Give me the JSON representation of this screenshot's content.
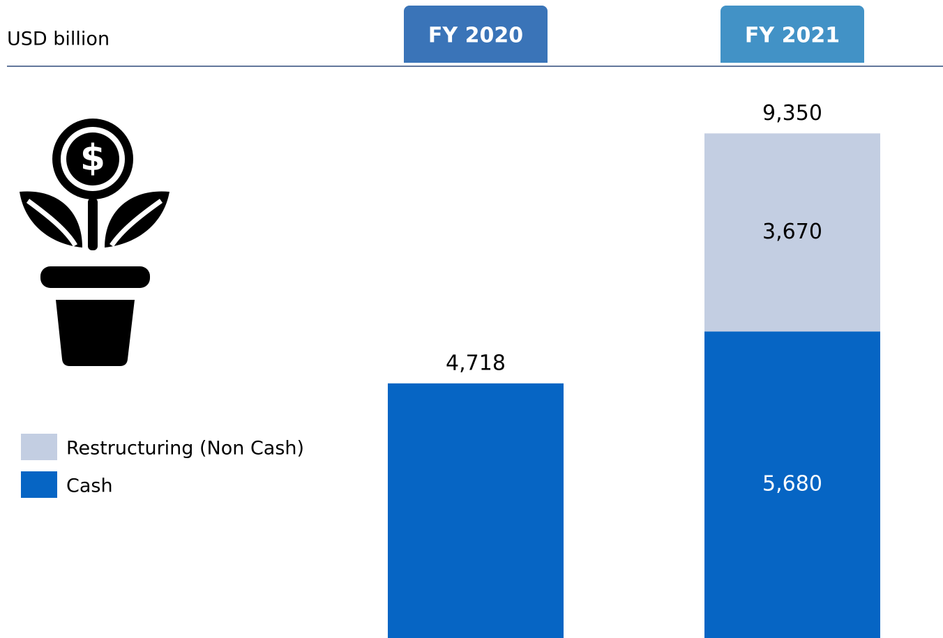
{
  "chart_data": {
    "type": "stacked_bar",
    "unit_label": "USD billion",
    "categories": [
      "FY 2020",
      "FY 2021"
    ],
    "series": [
      {
        "name": "Cash",
        "color": "#0665c4",
        "values": [
          4718,
          5680
        ],
        "value_labels": [
          null,
          "5,680"
        ]
      },
      {
        "name": "Restructuring (Non Cash)",
        "color": "#c3cee2",
        "values": [
          null,
          3670
        ],
        "value_labels": [
          null,
          "3,670"
        ]
      }
    ],
    "totals": [
      4718,
      9350
    ],
    "total_labels": [
      "4,718",
      "9,350"
    ],
    "ylim": [
      0,
      10000
    ]
  }
}
